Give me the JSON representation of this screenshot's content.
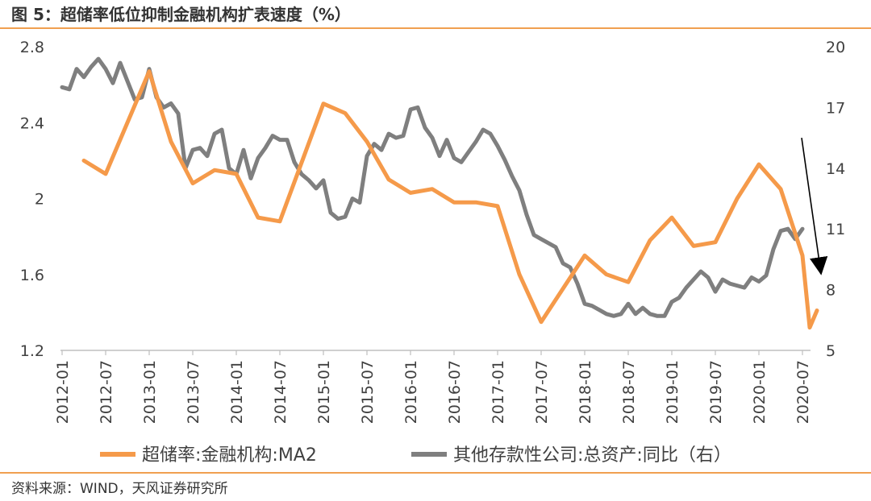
{
  "title": "图 5：超储率低位抑制金融机构扩表速度（%）",
  "source": "资料来源：WIND，天风证券研究所",
  "colors": {
    "series1": "#f59a4a",
    "series2": "#7f7f7f",
    "rule": "#f0a050",
    "axis": "#bfbfbf",
    "text": "#404040"
  },
  "chart_data": {
    "type": "line",
    "x_range": [
      "2012-01",
      "2020-09"
    ],
    "x_ticks": [
      "2012-01",
      "2012-07",
      "2013-01",
      "2013-07",
      "2014-01",
      "2014-07",
      "2015-01",
      "2015-07",
      "2016-01",
      "2016-07",
      "2017-01",
      "2017-07",
      "2018-01",
      "2018-07",
      "2019-01",
      "2019-07",
      "2020-01",
      "2020-07"
    ],
    "y_left": {
      "ticks": [
        "1.2",
        "1.6",
        "2",
        "2.4",
        "2.8"
      ],
      "range": [
        1.2,
        2.8
      ]
    },
    "y_right": {
      "ticks": [
        "5",
        "8",
        "11",
        "14",
        "17",
        "20"
      ],
      "range": [
        5,
        20
      ]
    },
    "legend": {
      "position": "bottom"
    },
    "annotations": [
      {
        "type": "arrow",
        "description": "downward trend arrow",
        "from": [
          "2020-06",
          15.5
        ],
        "to": [
          "2020-09",
          8.8
        ],
        "axis": "right"
      }
    ],
    "series": [
      {
        "name": "超储率:金融机构:MA2",
        "axis": "left",
        "points": [
          [
            "2012-04",
            2.2
          ],
          [
            "2012-07",
            2.13
          ],
          [
            "2013-01",
            2.67
          ],
          [
            "2013-04",
            2.3
          ],
          [
            "2013-07",
            2.08
          ],
          [
            "2013-10",
            2.15
          ],
          [
            "2014-01",
            2.13
          ],
          [
            "2014-04",
            1.9
          ],
          [
            "2014-07",
            1.88
          ],
          [
            "2015-01",
            2.5
          ],
          [
            "2015-04",
            2.45
          ],
          [
            "2015-07",
            2.3
          ],
          [
            "2015-10",
            2.1
          ],
          [
            "2016-01",
            2.03
          ],
          [
            "2016-04",
            2.05
          ],
          [
            "2016-07",
            1.98
          ],
          [
            "2016-10",
            1.98
          ],
          [
            "2017-01",
            1.96
          ],
          [
            "2017-04",
            1.6
          ],
          [
            "2017-07",
            1.35
          ],
          [
            "2018-01",
            1.7
          ],
          [
            "2018-04",
            1.6
          ],
          [
            "2018-07",
            1.56
          ],
          [
            "2018-10",
            1.78
          ],
          [
            "2019-01",
            1.9
          ],
          [
            "2019-04",
            1.75
          ],
          [
            "2019-07",
            1.77
          ],
          [
            "2019-10",
            2.0
          ],
          [
            "2020-01",
            2.18
          ],
          [
            "2020-04",
            2.05
          ],
          [
            "2020-07",
            1.7
          ],
          [
            "2020-08",
            1.32
          ],
          [
            "2020-09",
            1.41
          ]
        ]
      },
      {
        "name": "其他存款性公司:总资产:同比（右）",
        "axis": "right",
        "points": [
          [
            "2012-01",
            18.0
          ],
          [
            "2012-02",
            17.9
          ],
          [
            "2012-03",
            18.9
          ],
          [
            "2012-04",
            18.5
          ],
          [
            "2012-05",
            19.0
          ],
          [
            "2012-06",
            19.4
          ],
          [
            "2012-07",
            18.9
          ],
          [
            "2012-08",
            18.2
          ],
          [
            "2012-09",
            19.2
          ],
          [
            "2012-10",
            18.3
          ],
          [
            "2012-11",
            17.4
          ],
          [
            "2012-12",
            17.5
          ],
          [
            "2013-01",
            18.9
          ],
          [
            "2013-02",
            17.5
          ],
          [
            "2013-03",
            17.0
          ],
          [
            "2013-04",
            17.2
          ],
          [
            "2013-05",
            16.7
          ],
          [
            "2013-06",
            14.0
          ],
          [
            "2013-07",
            14.9
          ],
          [
            "2013-08",
            15.0
          ],
          [
            "2013-09",
            14.6
          ],
          [
            "2013-10",
            15.7
          ],
          [
            "2013-11",
            15.9
          ],
          [
            "2013-12",
            14.0
          ],
          [
            "2014-01",
            13.7
          ],
          [
            "2014-02",
            14.9
          ],
          [
            "2014-03",
            13.5
          ],
          [
            "2014-04",
            14.5
          ],
          [
            "2014-05",
            15.0
          ],
          [
            "2014-06",
            15.6
          ],
          [
            "2014-07",
            15.4
          ],
          [
            "2014-08",
            15.4
          ],
          [
            "2014-09",
            14.3
          ],
          [
            "2014-10",
            13.7
          ],
          [
            "2014-11",
            13.4
          ],
          [
            "2014-12",
            13.0
          ],
          [
            "2015-01",
            13.4
          ],
          [
            "2015-02",
            11.8
          ],
          [
            "2015-03",
            11.5
          ],
          [
            "2015-04",
            11.6
          ],
          [
            "2015-05",
            12.5
          ],
          [
            "2015-06",
            12.3
          ],
          [
            "2015-07",
            14.6
          ],
          [
            "2015-08",
            15.2
          ],
          [
            "2015-09",
            14.9
          ],
          [
            "2015-10",
            15.7
          ],
          [
            "2015-11",
            15.5
          ],
          [
            "2015-12",
            15.6
          ],
          [
            "2016-01",
            16.9
          ],
          [
            "2016-02",
            17.0
          ],
          [
            "2016-03",
            16.0
          ],
          [
            "2016-04",
            15.5
          ],
          [
            "2016-05",
            14.6
          ],
          [
            "2016-06",
            15.4
          ],
          [
            "2016-07",
            14.5
          ],
          [
            "2016-08",
            14.3
          ],
          [
            "2016-09",
            14.8
          ],
          [
            "2016-10",
            15.3
          ],
          [
            "2016-11",
            15.9
          ],
          [
            "2016-12",
            15.7
          ],
          [
            "2017-01",
            15.1
          ],
          [
            "2017-02",
            14.4
          ],
          [
            "2017-03",
            13.6
          ],
          [
            "2017-04",
            12.9
          ],
          [
            "2017-05",
            11.7
          ],
          [
            "2017-06",
            10.7
          ],
          [
            "2017-07",
            10.5
          ],
          [
            "2017-08",
            10.3
          ],
          [
            "2017-09",
            10.1
          ],
          [
            "2017-10",
            9.3
          ],
          [
            "2017-11",
            9.1
          ],
          [
            "2017-12",
            8.3
          ],
          [
            "2018-01",
            7.3
          ],
          [
            "2018-02",
            7.2
          ],
          [
            "2018-03",
            7.0
          ],
          [
            "2018-04",
            6.8
          ],
          [
            "2018-05",
            6.7
          ],
          [
            "2018-06",
            6.8
          ],
          [
            "2018-07",
            7.3
          ],
          [
            "2018-08",
            6.8
          ],
          [
            "2018-09",
            7.1
          ],
          [
            "2018-10",
            6.8
          ],
          [
            "2018-11",
            6.7
          ],
          [
            "2018-12",
            6.7
          ],
          [
            "2019-01",
            7.4
          ],
          [
            "2019-02",
            7.6
          ],
          [
            "2019-03",
            8.1
          ],
          [
            "2019-04",
            8.5
          ],
          [
            "2019-05",
            8.9
          ],
          [
            "2019-06",
            8.6
          ],
          [
            "2019-07",
            7.9
          ],
          [
            "2019-08",
            8.5
          ],
          [
            "2019-09",
            8.3
          ],
          [
            "2019-10",
            8.2
          ],
          [
            "2019-11",
            8.1
          ],
          [
            "2019-12",
            8.6
          ],
          [
            "2020-01",
            8.4
          ],
          [
            "2020-02",
            8.7
          ],
          [
            "2020-03",
            10.0
          ],
          [
            "2020-04",
            10.9
          ],
          [
            "2020-05",
            11.0
          ],
          [
            "2020-06",
            10.5
          ],
          [
            "2020-07",
            11.0
          ]
        ]
      }
    ]
  }
}
